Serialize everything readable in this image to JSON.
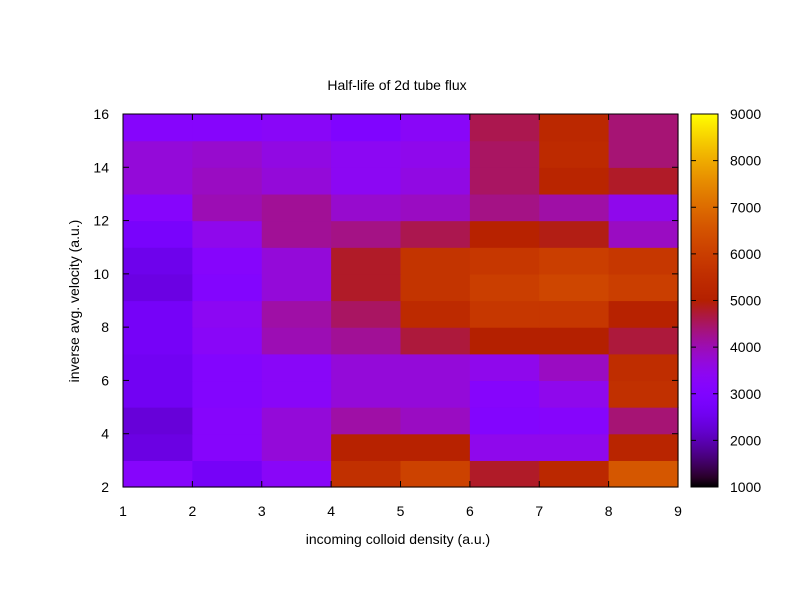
{
  "chart_data": {
    "type": "heatmap",
    "title": "Half-life of 2d tube flux",
    "xlabel": "incoming colloid density (a.u.)",
    "ylabel": "inverse avg. velocity (a.u.)",
    "xlim": [
      1,
      9
    ],
    "ylim": [
      2,
      16
    ],
    "x_ticks": [
      1,
      2,
      3,
      4,
      5,
      6,
      7,
      8,
      9
    ],
    "y_ticks": [
      2,
      4,
      6,
      8,
      10,
      12,
      14,
      16
    ],
    "colorbar": {
      "range": [
        1000,
        9000
      ],
      "ticks": [
        1000,
        2000,
        3000,
        4000,
        5000,
        6000,
        7000,
        8000,
        9000
      ],
      "palette": "black-blue-purple-red-orange-yellow"
    },
    "x_edges": [
      1,
      2,
      3,
      4,
      5,
      6,
      7,
      8,
      9
    ],
    "y_edges": [
      2,
      3,
      4,
      5,
      6,
      7,
      8,
      9,
      10,
      11,
      12,
      13,
      14,
      15,
      16
    ],
    "grid": false,
    "values": [
      [
        3200,
        2700,
        3300,
        5600,
        6100,
        4800,
        5300,
        6600
      ],
      [
        2400,
        3200,
        3700,
        5100,
        5100,
        3500,
        3500,
        5200
      ],
      [
        2300,
        3200,
        3700,
        4100,
        3900,
        3100,
        3200,
        4400
      ],
      [
        2600,
        3100,
        3300,
        3700,
        3700,
        3200,
        3500,
        5600
      ],
      [
        2600,
        3100,
        3300,
        3700,
        3700,
        3500,
        3900,
        5500
      ],
      [
        2700,
        3300,
        4000,
        4200,
        4700,
        5000,
        5000,
        4700
      ],
      [
        2700,
        3400,
        4100,
        4500,
        5400,
        5800,
        5800,
        5100
      ],
      [
        2400,
        3100,
        3700,
        4800,
        5700,
        6000,
        6200,
        6000
      ],
      [
        2500,
        3200,
        3700,
        4800,
        5700,
        5800,
        6000,
        5800
      ],
      [
        2800,
        3500,
        4200,
        4300,
        4600,
        5100,
        4900,
        3900
      ],
      [
        3200,
        4000,
        4200,
        3800,
        3900,
        4300,
        4100,
        3500
      ],
      [
        3700,
        3900,
        3700,
        3400,
        3600,
        4500,
        5200,
        4800
      ],
      [
        3700,
        3800,
        3600,
        3400,
        3500,
        4500,
        5400,
        4400
      ],
      [
        3200,
        3200,
        3300,
        3000,
        3300,
        4600,
        5300,
        4400
      ]
    ]
  }
}
